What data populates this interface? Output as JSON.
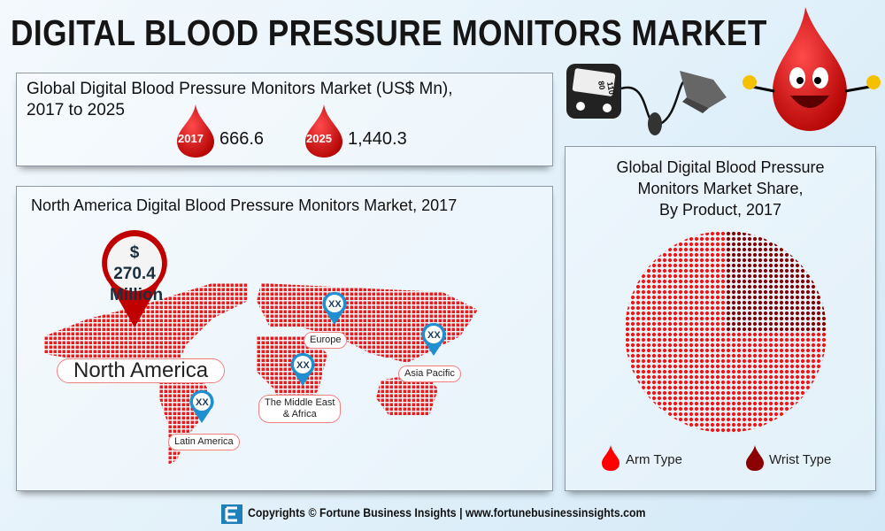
{
  "header": {
    "title": "DIGITAL BLOOD PRESSURE MONITORS MARKET"
  },
  "global": {
    "title_line1": "Global Digital Blood Pressure Monitors Market (US$ Mn),",
    "title_line2": "2017 to 2025",
    "items": [
      {
        "year": "2017",
        "value": "666.6"
      },
      {
        "year": "2025",
        "value": "1,440.3"
      }
    ]
  },
  "map": {
    "title": "North America Digital Blood Pressure Monitors Market, 2017",
    "highlight": {
      "value_line1": "$ 270.4",
      "value_line2": "Million",
      "region": "North America"
    },
    "regions": [
      {
        "name": "Europe",
        "value": "XX"
      },
      {
        "name": "Asia Pacific",
        "value": "XX"
      },
      {
        "name_line1": "The Middle East",
        "name_line2": "& Africa",
        "value": "XX"
      },
      {
        "name": "Latin America",
        "value": "XX"
      }
    ]
  },
  "device": {
    "reading_top": "110",
    "reading_bottom": "80"
  },
  "chart_data": {
    "type": "pie",
    "title": "Global Digital Blood Pressure Monitors Market Share, By Product, 2017",
    "title_lines": [
      "Global Digital Blood Pressure",
      "Monitors Market Share,",
      "By Product, 2017"
    ],
    "categories": [
      "Arm Type",
      "Wrist Type"
    ],
    "values": [
      75,
      25
    ],
    "colors": [
      "#ff0000",
      "#8b0000"
    ],
    "legend": "bottom"
  },
  "footer": {
    "text": "Copyrights © Fortune Business Insights | www.fortunebusinessinsights.com"
  },
  "colors": {
    "accent": "#e30613",
    "pin": "#1f8fd0"
  }
}
